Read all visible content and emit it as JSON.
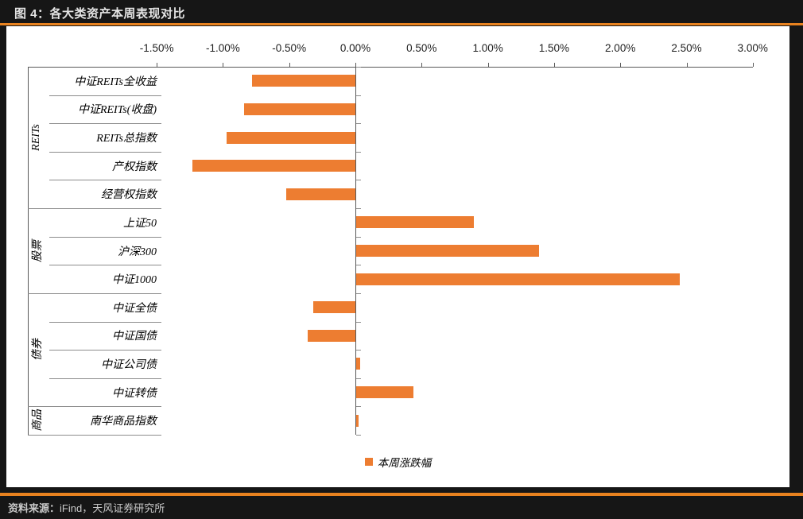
{
  "header": {
    "title": "图 4：各大类资产本周表现对比"
  },
  "footer": {
    "source_prefix": "资料来源：",
    "source_text": "iFind，天风证券研究所"
  },
  "colors": {
    "bar": "#ED7D31",
    "accent": "#E8821F",
    "page_bg": "#161616",
    "card_bg": "#FFFFFF",
    "axis_line": "#595959",
    "separator": "#8C8C8C"
  },
  "chart_data": {
    "type": "bar",
    "orientation": "horizontal",
    "title": "各大类资产本周表现对比",
    "legend_label": "本周涨跌幅",
    "legend_position": "bottom-center",
    "xlim": [
      -1.5,
      3.0
    ],
    "grid": false,
    "value_unit": "%",
    "x_axis": {
      "ticks": [
        {
          "label": "-1.50%",
          "value": -1.5
        },
        {
          "label": "-1.00%",
          "value": -1.0
        },
        {
          "label": "-0.50%",
          "value": -0.5
        },
        {
          "label": "0.00%",
          "value": 0.0
        },
        {
          "label": "0.50%",
          "value": 0.5
        },
        {
          "label": "1.00%",
          "value": 1.0
        },
        {
          "label": "1.50%",
          "value": 1.5
        },
        {
          "label": "2.00%",
          "value": 2.0
        },
        {
          "label": "2.50%",
          "value": 2.5
        },
        {
          "label": "3.00%",
          "value": 3.0
        }
      ]
    },
    "groups": [
      {
        "name": "REITs",
        "items": [
          {
            "label": "中证REITs全收益",
            "value": -0.78
          },
          {
            "label": "中证REITs(收盘)",
            "value": -0.84
          },
          {
            "label": "REITs总指数",
            "value": -0.97
          },
          {
            "label": "产权指数",
            "value": -1.23
          },
          {
            "label": "经营权指数",
            "value": -0.52
          }
        ]
      },
      {
        "name": "股票",
        "items": [
          {
            "label": "上证50",
            "value": 0.89
          },
          {
            "label": "沪深300",
            "value": 1.38
          },
          {
            "label": "中证1000",
            "value": 2.44
          }
        ]
      },
      {
        "name": "债券",
        "items": [
          {
            "label": "中证全债",
            "value": -0.32
          },
          {
            "label": "中证国债",
            "value": -0.36
          },
          {
            "label": "中证公司债",
            "value": 0.03
          },
          {
            "label": "中证转债",
            "value": 0.43
          }
        ]
      },
      {
        "name": "商品",
        "items": [
          {
            "label": "南华商品指数",
            "value": 0.02
          }
        ]
      }
    ]
  }
}
